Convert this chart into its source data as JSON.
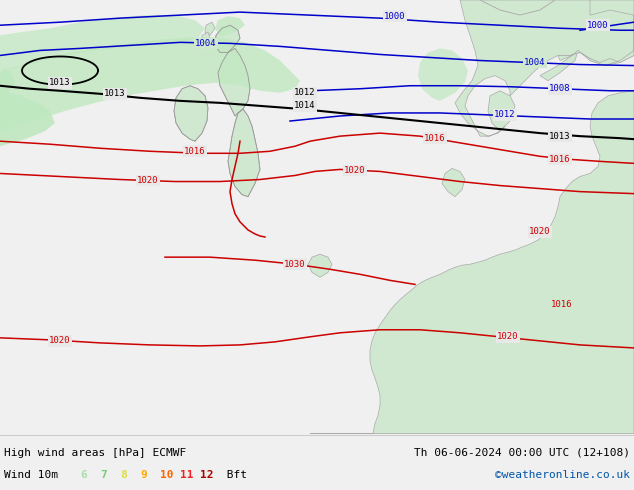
{
  "title_left": "High wind areas [hPa] ECMWF",
  "title_right": "Th 06-06-2024 00:00 UTC (12+108)",
  "subtitle_left": "Wind 10m",
  "subtitle_right": "©weatheronline.co.uk",
  "legend_values": [
    "6",
    "7",
    "8",
    "9",
    "10",
    "11",
    "12"
  ],
  "legend_colors": [
    "#aaddaa",
    "#77cc77",
    "#dddd44",
    "#ffaa00",
    "#ff6600",
    "#ee2222",
    "#aa0000"
  ],
  "legend_suffix": " Bft",
  "bg_color": "#f0f0f0",
  "sea_color": "#e8e8e8",
  "land_color": "#d0e8d0",
  "wind_green": "#c0e8c0",
  "isobar_red": "#cc0000",
  "isobar_blue": "#0000cc",
  "isobar_black": "#000000",
  "border_color": "#aaaaaa"
}
